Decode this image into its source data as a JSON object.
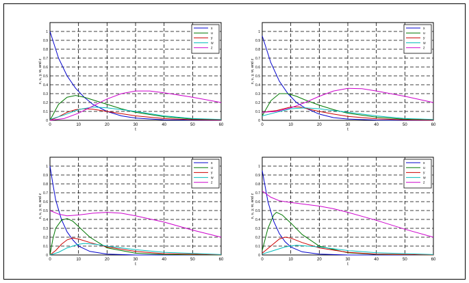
{
  "figure": {
    "frame_color": "#000000",
    "background": "#ffffff"
  },
  "chart_data": [
    {
      "type": "line",
      "xlabel": "t",
      "ylabel": "x, u, y, w, and z",
      "xlim": [
        0,
        60
      ],
      "ylim": [
        0,
        1.1
      ],
      "xticks": [
        "0",
        "10",
        "20",
        "30",
        "40",
        "50",
        "60"
      ],
      "yticks": [
        "0",
        "0.1",
        "0.2",
        "0.3",
        "0.4",
        "0.5",
        "0.6",
        "0.7",
        "0.8",
        "0.9",
        "1"
      ],
      "grid": true,
      "legend": "top-right",
      "series": [
        {
          "name": "x",
          "color": "#0000cc",
          "points": [
            [
              0,
              1
            ],
            [
              3,
              0.7
            ],
            [
              6,
              0.5
            ],
            [
              9,
              0.36
            ],
            [
              12,
              0.26
            ],
            [
              15,
              0.18
            ],
            [
              20,
              0.1
            ],
            [
              25,
              0.05
            ],
            [
              30,
              0.025
            ],
            [
              40,
              0.005
            ],
            [
              60,
              0
            ]
          ]
        },
        {
          "name": "u",
          "color": "#007700",
          "points": [
            [
              0,
              0
            ],
            [
              3,
              0.18
            ],
            [
              6,
              0.26
            ],
            [
              9,
              0.28
            ],
            [
              12,
              0.26
            ],
            [
              15,
              0.23
            ],
            [
              20,
              0.18
            ],
            [
              25,
              0.13
            ],
            [
              30,
              0.09
            ],
            [
              40,
              0.04
            ],
            [
              50,
              0.015
            ],
            [
              60,
              0.005
            ]
          ]
        },
        {
          "name": "y",
          "color": "#cc0000",
          "points": [
            [
              0,
              0
            ],
            [
              3,
              0.04
            ],
            [
              6,
              0.09
            ],
            [
              9,
              0.12
            ],
            [
              12,
              0.13
            ],
            [
              15,
              0.125
            ],
            [
              20,
              0.1
            ],
            [
              25,
              0.075
            ],
            [
              30,
              0.05
            ],
            [
              40,
              0.02
            ],
            [
              50,
              0.008
            ],
            [
              60,
              0.003
            ]
          ]
        },
        {
          "name": "w",
          "color": "#00bbbb",
          "points": [
            [
              0,
              0.01
            ],
            [
              5,
              0.06
            ],
            [
              10,
              0.12
            ],
            [
              15,
              0.15
            ],
            [
              20,
              0.14
            ],
            [
              25,
              0.12
            ],
            [
              30,
              0.1
            ],
            [
              40,
              0.05
            ],
            [
              50,
              0.02
            ],
            [
              60,
              0.01
            ]
          ]
        },
        {
          "name": "z",
          "color": "#cc00cc",
          "points": [
            [
              0,
              0
            ],
            [
              5,
              0.02
            ],
            [
              10,
              0.08
            ],
            [
              15,
              0.16
            ],
            [
              20,
              0.24
            ],
            [
              25,
              0.3
            ],
            [
              30,
              0.33
            ],
            [
              35,
              0.33
            ],
            [
              40,
              0.31
            ],
            [
              50,
              0.26
            ],
            [
              60,
              0.2
            ]
          ]
        }
      ]
    },
    {
      "type": "line",
      "xlabel": "t",
      "ylabel": "x, u, y, w, and z",
      "xlim": [
        0,
        60
      ],
      "ylim": [
        0,
        1.1
      ],
      "xticks": [
        "0",
        "10",
        "20",
        "30",
        "40",
        "50",
        "60"
      ],
      "yticks": [
        "0",
        "0.1",
        "0.2",
        "0.3",
        "0.4",
        "0.5",
        "0.6",
        "0.7",
        "0.8",
        "0.9",
        "1"
      ],
      "grid": true,
      "legend": "top-right",
      "series": [
        {
          "name": "x",
          "color": "#0000cc",
          "points": [
            [
              0,
              0.95
            ],
            [
              3,
              0.65
            ],
            [
              6,
              0.44
            ],
            [
              9,
              0.3
            ],
            [
              12,
              0.2
            ],
            [
              15,
              0.14
            ],
            [
              20,
              0.07
            ],
            [
              25,
              0.03
            ],
            [
              30,
              0.015
            ],
            [
              40,
              0.003
            ],
            [
              60,
              0
            ]
          ]
        },
        {
          "name": "u",
          "color": "#007700",
          "points": [
            [
              0,
              0.05
            ],
            [
              3,
              0.22
            ],
            [
              6,
              0.3
            ],
            [
              9,
              0.3
            ],
            [
              12,
              0.27
            ],
            [
              15,
              0.23
            ],
            [
              20,
              0.17
            ],
            [
              25,
              0.12
            ],
            [
              30,
              0.08
            ],
            [
              40,
              0.035
            ],
            [
              50,
              0.012
            ],
            [
              60,
              0.004
            ]
          ]
        },
        {
          "name": "y",
          "color": "#cc0000",
          "points": [
            [
              0,
              0.09
            ],
            [
              5,
              0.11
            ],
            [
              10,
              0.15
            ],
            [
              13,
              0.15
            ],
            [
              20,
              0.1
            ],
            [
              25,
              0.07
            ],
            [
              30,
              0.045
            ],
            [
              40,
              0.018
            ],
            [
              50,
              0.006
            ],
            [
              60,
              0.002
            ]
          ]
        },
        {
          "name": "w",
          "color": "#00bbbb",
          "points": [
            [
              0,
              0.05
            ],
            [
              5,
              0.09
            ],
            [
              10,
              0.13
            ],
            [
              15,
              0.14
            ],
            [
              20,
              0.13
            ],
            [
              25,
              0.11
            ],
            [
              30,
              0.09
            ],
            [
              40,
              0.05
            ],
            [
              50,
              0.02
            ],
            [
              60,
              0.01
            ]
          ]
        },
        {
          "name": "z",
          "color": "#cc00cc",
          "points": [
            [
              0,
              0.09
            ],
            [
              5,
              0.1
            ],
            [
              10,
              0.14
            ],
            [
              15,
              0.2
            ],
            [
              20,
              0.27
            ],
            [
              25,
              0.33
            ],
            [
              30,
              0.36
            ],
            [
              35,
              0.355
            ],
            [
              40,
              0.33
            ],
            [
              50,
              0.27
            ],
            [
              60,
              0.2
            ]
          ]
        }
      ]
    },
    {
      "type": "line",
      "xlabel": "t",
      "ylabel": "x, u, y, w, and z",
      "xlim": [
        0,
        60
      ],
      "ylim": [
        0,
        1.1
      ],
      "xticks": [
        "0",
        "10",
        "20",
        "30",
        "40",
        "50",
        "60"
      ],
      "yticks": [
        "0",
        "0.1",
        "0.2",
        "0.3",
        "0.4",
        "0.5",
        "0.6",
        "0.7",
        "0.8",
        "0.9",
        "1"
      ],
      "grid": true,
      "legend": "top-right",
      "series": [
        {
          "name": "x",
          "color": "#0000cc",
          "points": [
            [
              0,
              1
            ],
            [
              1,
              0.8
            ],
            [
              2,
              0.62
            ],
            [
              4,
              0.4
            ],
            [
              6,
              0.26
            ],
            [
              8,
              0.17
            ],
            [
              10,
              0.1
            ],
            [
              14,
              0.04
            ],
            [
              20,
              0.01
            ],
            [
              30,
              0
            ],
            [
              60,
              0
            ]
          ]
        },
        {
          "name": "u",
          "color": "#007700",
          "points": [
            [
              0,
              0
            ],
            [
              1,
              0.18
            ],
            [
              2,
              0.3
            ],
            [
              4,
              0.39
            ],
            [
              6,
              0.41
            ],
            [
              8,
              0.38
            ],
            [
              10,
              0.32
            ],
            [
              14,
              0.2
            ],
            [
              20,
              0.08
            ],
            [
              30,
              0.02
            ],
            [
              40,
              0.005
            ],
            [
              60,
              0
            ]
          ]
        },
        {
          "name": "y",
          "color": "#cc0000",
          "points": [
            [
              0,
              0
            ],
            [
              2,
              0.05
            ],
            [
              4,
              0.12
            ],
            [
              6,
              0.17
            ],
            [
              8,
              0.19
            ],
            [
              10,
              0.18
            ],
            [
              14,
              0.14
            ],
            [
              20,
              0.09
            ],
            [
              30,
              0.04
            ],
            [
              40,
              0.015
            ],
            [
              60,
              0.002
            ]
          ]
        },
        {
          "name": "w",
          "color": "#00bbbb",
          "points": [
            [
              0,
              0
            ],
            [
              3,
              0.03
            ],
            [
              6,
              0.08
            ],
            [
              10,
              0.12
            ],
            [
              12,
              0.13
            ],
            [
              16,
              0.12
            ],
            [
              20,
              0.1
            ],
            [
              30,
              0.06
            ],
            [
              40,
              0.03
            ],
            [
              60,
              0.005
            ]
          ]
        },
        {
          "name": "z",
          "color": "#cc00cc",
          "points": [
            [
              0,
              0.5
            ],
            [
              3,
              0.46
            ],
            [
              6,
              0.44
            ],
            [
              10,
              0.45
            ],
            [
              15,
              0.47
            ],
            [
              20,
              0.48
            ],
            [
              25,
              0.47
            ],
            [
              30,
              0.44
            ],
            [
              40,
              0.37
            ],
            [
              50,
              0.28
            ],
            [
              60,
              0.2
            ]
          ]
        }
      ]
    },
    {
      "type": "line",
      "xlabel": "t",
      "ylabel": "x, u, y, w, and z",
      "xlim": [
        0,
        60
      ],
      "ylim": [
        0,
        1.1
      ],
      "xticks": [
        "0",
        "10",
        "20",
        "30",
        "40",
        "50",
        "60"
      ],
      "yticks": [
        "0",
        "0.1",
        "0.2",
        "0.3",
        "0.4",
        "0.5",
        "0.6",
        "0.7",
        "0.8",
        "0.9",
        "1"
      ],
      "grid": true,
      "legend": "top-right",
      "series": [
        {
          "name": "x",
          "color": "#0000cc",
          "points": [
            [
              0,
              0.95
            ],
            [
              2,
              0.6
            ],
            [
              4,
              0.38
            ],
            [
              6,
              0.24
            ],
            [
              8,
              0.15
            ],
            [
              10,
              0.09
            ],
            [
              14,
              0.035
            ],
            [
              20,
              0.01
            ],
            [
              30,
              0
            ],
            [
              60,
              0
            ]
          ]
        },
        {
          "name": "u",
          "color": "#007700",
          "points": [
            [
              0,
              0.05
            ],
            [
              2,
              0.3
            ],
            [
              4,
              0.45
            ],
            [
              5,
              0.48
            ],
            [
              7,
              0.45
            ],
            [
              10,
              0.36
            ],
            [
              14,
              0.23
            ],
            [
              20,
              0.1
            ],
            [
              30,
              0.025
            ],
            [
              40,
              0.006
            ],
            [
              60,
              0
            ]
          ]
        },
        {
          "name": "y",
          "color": "#cc0000",
          "points": [
            [
              0,
              0.02
            ],
            [
              3,
              0.1
            ],
            [
              6,
              0.18
            ],
            [
              8,
              0.2
            ],
            [
              10,
              0.19
            ],
            [
              14,
              0.14
            ],
            [
              20,
              0.08
            ],
            [
              30,
              0.03
            ],
            [
              40,
              0.01
            ],
            [
              60,
              0.001
            ]
          ]
        },
        {
          "name": "w",
          "color": "#00bbbb",
          "points": [
            [
              0,
              0.01
            ],
            [
              4,
              0.05
            ],
            [
              8,
              0.09
            ],
            [
              12,
              0.11
            ],
            [
              16,
              0.1
            ],
            [
              20,
              0.09
            ],
            [
              30,
              0.05
            ],
            [
              40,
              0.025
            ],
            [
              60,
              0.005
            ]
          ]
        },
        {
          "name": "z",
          "color": "#cc00cc",
          "points": [
            [
              0,
              0.72
            ],
            [
              3,
              0.65
            ],
            [
              6,
              0.61
            ],
            [
              10,
              0.59
            ],
            [
              15,
              0.57
            ],
            [
              20,
              0.55
            ],
            [
              25,
              0.52
            ],
            [
              30,
              0.48
            ],
            [
              40,
              0.39
            ],
            [
              50,
              0.29
            ],
            [
              60,
              0.2
            ]
          ]
        }
      ]
    }
  ]
}
